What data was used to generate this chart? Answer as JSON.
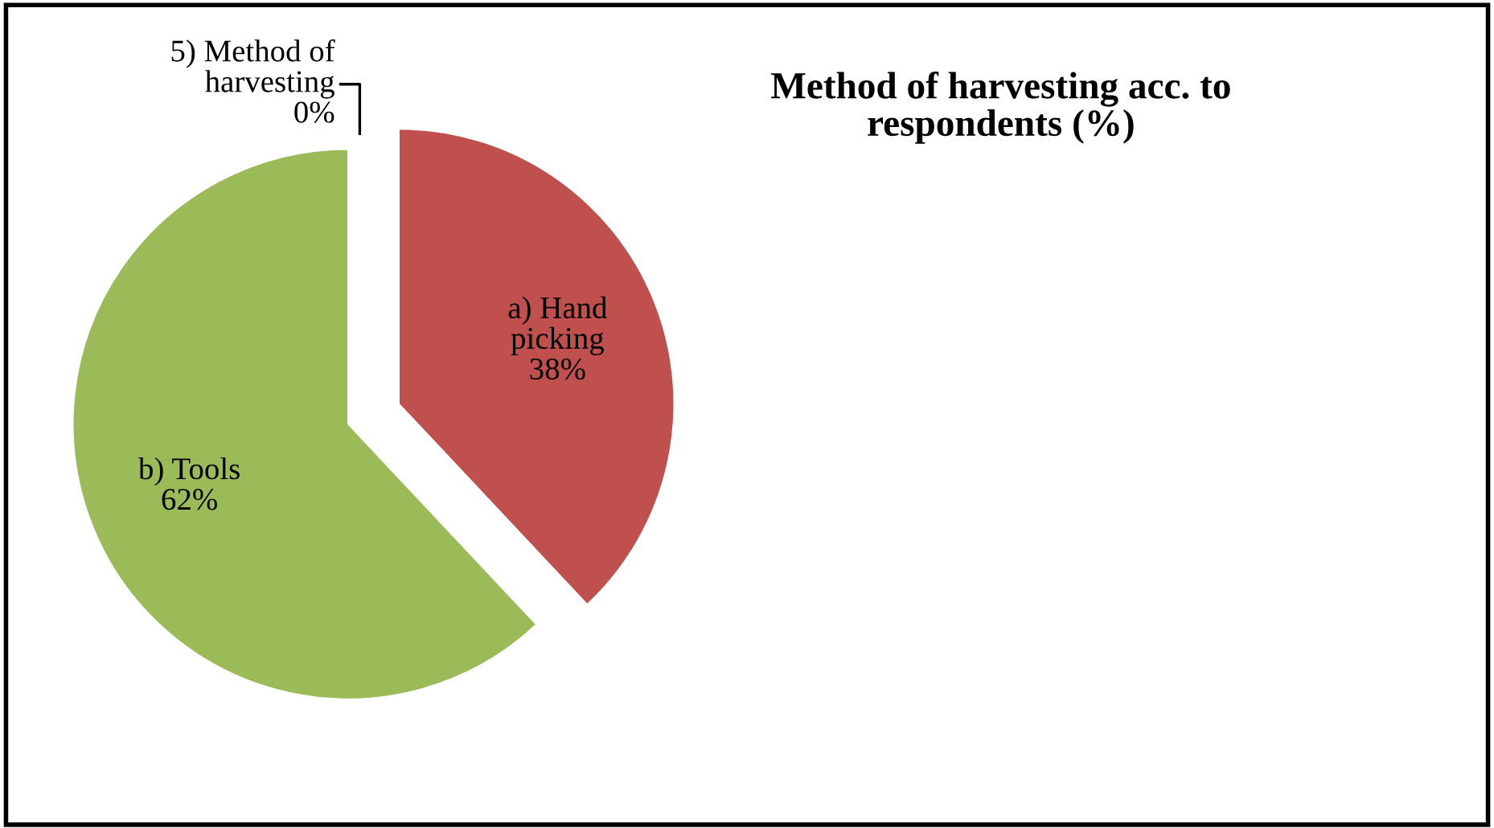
{
  "chart_data": {
    "type": "pie",
    "title": "Method of harvesting acc. to\nrespondents (%)",
    "categories": [
      "5) Method of\nharvesting",
      "a) Hand\npicking",
      "b) Tools"
    ],
    "values": [
      0,
      38,
      62
    ],
    "value_labels": [
      "0%",
      "38%",
      "62%"
    ],
    "colors": [
      "#4f81bd",
      "#c0504d",
      "#9bbb59"
    ],
    "legend": false
  }
}
